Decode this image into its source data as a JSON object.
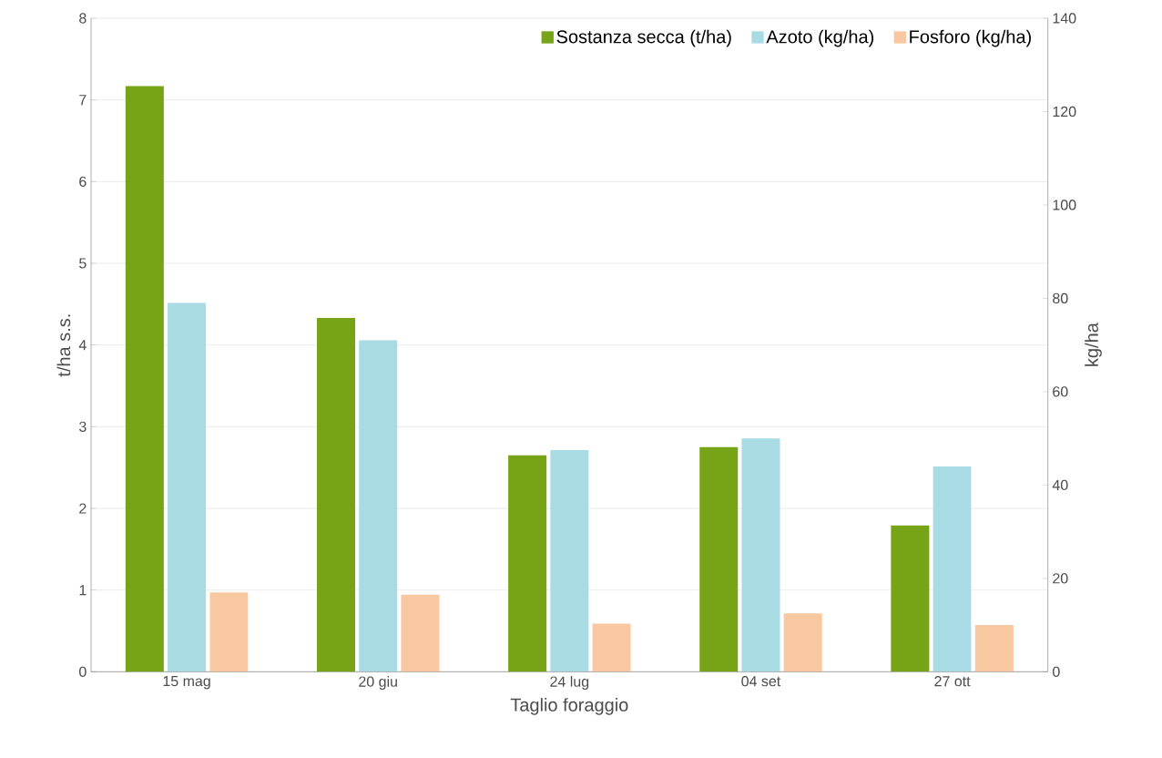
{
  "chart_data": {
    "type": "bar",
    "xlabel": "Taglio foraggio",
    "ylabel": "t/ha s.s.",
    "y2label": "kg/ha",
    "categories": [
      "15 mag",
      "20 giu",
      "24 lug",
      "04 set",
      "27 ott"
    ],
    "series": [
      {
        "name": "Sostanza secca (t/ha)",
        "color": "#77a317",
        "values": [
          7.17,
          4.33,
          2.65,
          2.75,
          1.79
        ]
      },
      {
        "name": "Azoto (kg/ha)",
        "color": "#a9dbe5",
        "axis": "y2",
        "values": [
          79,
          71,
          47.5,
          50,
          44
        ]
      },
      {
        "name": "Fosforo (kg/ha)",
        "color": "#f8c9a0",
        "axis": "y2",
        "values": [
          17,
          16.5,
          10.3,
          12.5,
          10
        ]
      }
    ],
    "ylim": [
      0,
      8
    ],
    "yticks": [
      0,
      1,
      2,
      3,
      4,
      5,
      6,
      7,
      8
    ],
    "y2lim": [
      0,
      140
    ],
    "y2ticks": [
      0,
      20,
      40,
      60,
      80,
      100,
      120,
      140
    ],
    "grid": "y",
    "legend": "top right"
  }
}
